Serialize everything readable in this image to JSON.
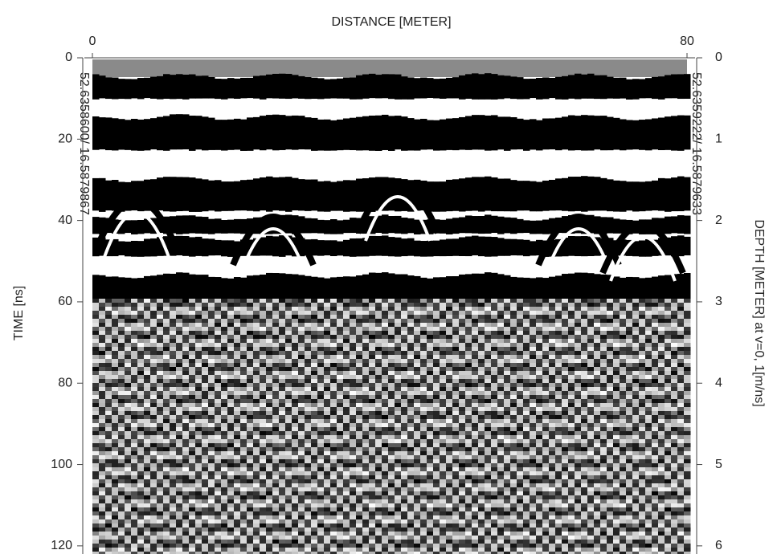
{
  "chart_data": {
    "type": "radargram",
    "x_label": "DISTANCE [METER]",
    "y_label": "TIME [ns]",
    "y2_label": "DEPTH [METER] at v=0, 1[m/ns]",
    "xlim": [
      0,
      80
    ],
    "xticks": [
      0,
      80
    ],
    "ylim": [
      0,
      122
    ],
    "yticks": [
      0,
      20,
      40,
      60,
      80,
      100,
      120
    ],
    "y2lim": [
      0,
      6.1
    ],
    "y2ticks": [
      0,
      1,
      2,
      3,
      4,
      5,
      6
    ],
    "annotations": [
      "52.6358600/ 16.5879867",
      "52.6359222/ 16.5879633"
    ]
  }
}
